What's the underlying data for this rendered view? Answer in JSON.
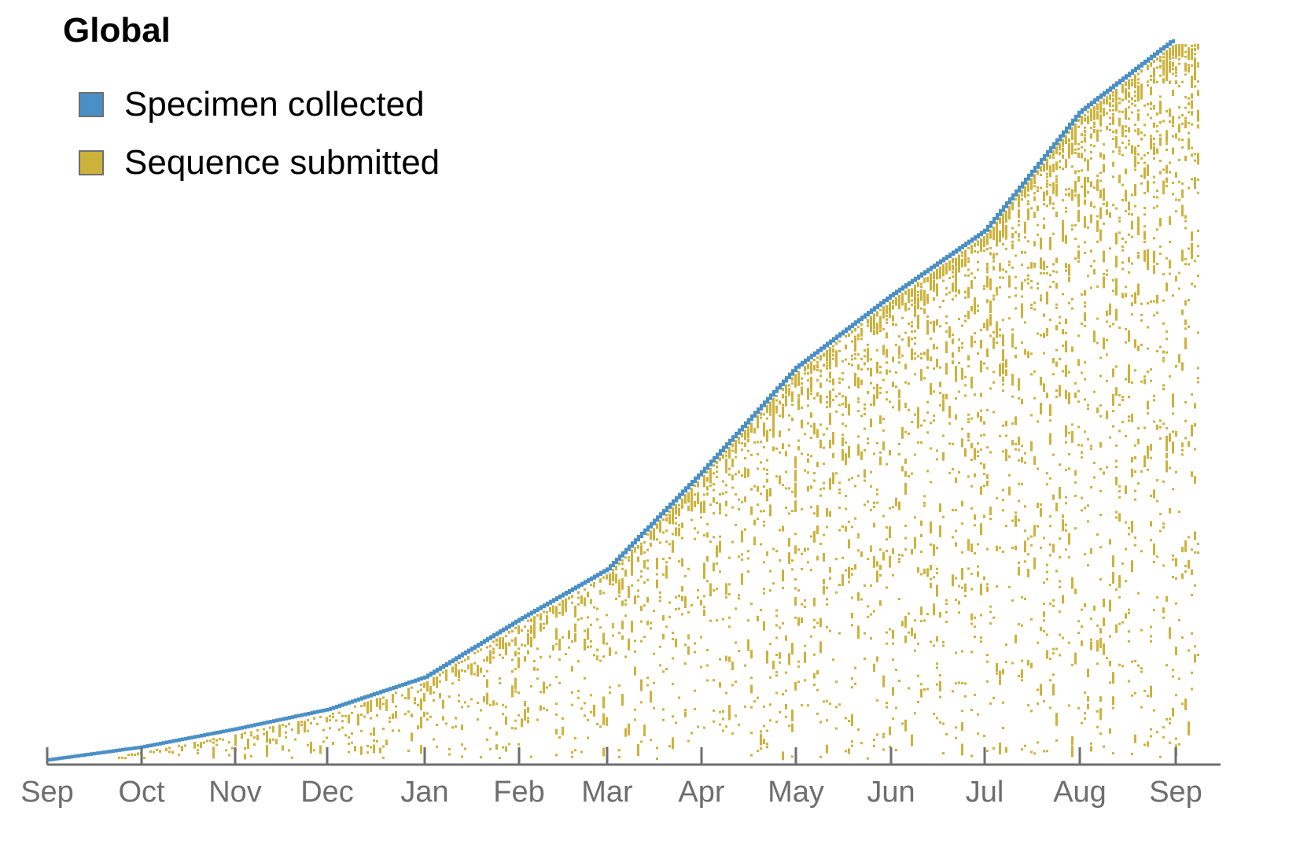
{
  "title": "Global",
  "legend": [
    {
      "label": "Specimen collected",
      "color": "#4a90c6"
    },
    {
      "label": "Sequence submitted",
      "color": "#cdb23c"
    }
  ],
  "chart_data": {
    "type": "line",
    "title": "Global",
    "xlabel": "",
    "ylabel": "",
    "x_ticks": [
      "Sep",
      "Oct",
      "Nov",
      "Dec",
      "Jan",
      "Feb",
      "Mar",
      "Apr",
      "May",
      "Jun",
      "Jul",
      "Aug",
      "Sep"
    ],
    "y_axis": "unlabeled (cumulative count)",
    "series": [
      {
        "name": "Specimen collected",
        "style": "step line",
        "color": "#4a90c6",
        "x": [
          "Sep",
          "Oct",
          "Nov",
          "Dec",
          "Jan",
          "Feb",
          "Mar",
          "Apr",
          "May",
          "Jun",
          "Jul",
          "Aug",
          "Sep"
        ],
        "values_fraction_of_max": [
          0.0,
          0.018,
          0.043,
          0.07,
          0.115,
          0.195,
          0.265,
          0.4,
          0.545,
          0.645,
          0.735,
          0.9,
          1.0
        ]
      },
      {
        "name": "Sequence submitted",
        "style": "scattered cells below curve",
        "color": "#cdb23c"
      }
    ]
  }
}
